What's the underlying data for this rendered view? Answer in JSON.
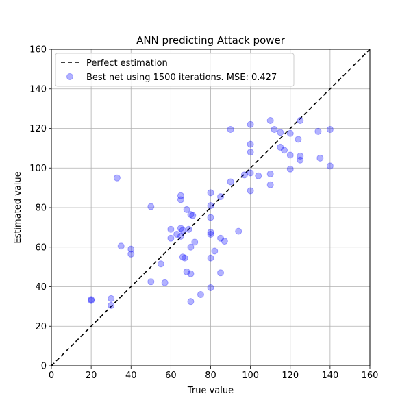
{
  "chart_data": {
    "type": "scatter",
    "title": "ANN predicting Attack power",
    "xlabel": "True value",
    "ylabel": "Estimated value",
    "xlim": [
      0,
      160
    ],
    "ylim": [
      0,
      160
    ],
    "xticks": [
      0,
      20,
      40,
      60,
      80,
      100,
      120,
      140,
      160
    ],
    "yticks": [
      0,
      20,
      40,
      60,
      80,
      100,
      120,
      140,
      160
    ],
    "grid": true,
    "legend_position": "top-left",
    "legend": [
      {
        "label": "Perfect estimation",
        "kind": "line"
      },
      {
        "label": "Best net using 1500 iterations. MSE: 0.427",
        "kind": "marker"
      }
    ],
    "reference_line": {
      "name": "Perfect estimation",
      "x": [
        0,
        160
      ],
      "y": [
        0,
        160
      ],
      "color": "#000000",
      "style": "dashed"
    },
    "series": [
      {
        "name": "Best net using 1500 iterations. MSE: 0.427",
        "color": "#0000ff",
        "points": [
          [
            20,
            33.5
          ],
          [
            20,
            33
          ],
          [
            30,
            34
          ],
          [
            30,
            30.5
          ],
          [
            33,
            95
          ],
          [
            35,
            60.5
          ],
          [
            40,
            59
          ],
          [
            40,
            56.5
          ],
          [
            50,
            80.5
          ],
          [
            50,
            42.5
          ],
          [
            55,
            51.5
          ],
          [
            57,
            42
          ],
          [
            60,
            69
          ],
          [
            60,
            64.5
          ],
          [
            63,
            66.5
          ],
          [
            65,
            86
          ],
          [
            65,
            84
          ],
          [
            65,
            69.5
          ],
          [
            66,
            68.5
          ],
          [
            65,
            65.5
          ],
          [
            66,
            55
          ],
          [
            67,
            54.5
          ],
          [
            68,
            79
          ],
          [
            69,
            69
          ],
          [
            68,
            47.5
          ],
          [
            70,
            76.5
          ],
          [
            71,
            76
          ],
          [
            70,
            60
          ],
          [
            70,
            46.5
          ],
          [
            72,
            62.5
          ],
          [
            70,
            32.5
          ],
          [
            75,
            36
          ],
          [
            80,
            87.5
          ],
          [
            80,
            81
          ],
          [
            80,
            75
          ],
          [
            80,
            67.5
          ],
          [
            80,
            66.5
          ],
          [
            80,
            54.5
          ],
          [
            80,
            39.5
          ],
          [
            82,
            58
          ],
          [
            85,
            85.5
          ],
          [
            85,
            64.5
          ],
          [
            85,
            47
          ],
          [
            87,
            63
          ],
          [
            90,
            119.5
          ],
          [
            90,
            93
          ],
          [
            94,
            68
          ],
          [
            97,
            96.5
          ],
          [
            100,
            122
          ],
          [
            100,
            112
          ],
          [
            100,
            108
          ],
          [
            100,
            97.5
          ],
          [
            100,
            88.5
          ],
          [
            104,
            96
          ],
          [
            110,
            124
          ],
          [
            112,
            119.5
          ],
          [
            115,
            118
          ],
          [
            110,
            97
          ],
          [
            110,
            91.5
          ],
          [
            115,
            110.5
          ],
          [
            117,
            109
          ],
          [
            120,
            117.5
          ],
          [
            120,
            106.5
          ],
          [
            120,
            99.5
          ],
          [
            124,
            114.5
          ],
          [
            125,
            124
          ],
          [
            125,
            106
          ],
          [
            125,
            104
          ],
          [
            134,
            118.5
          ],
          [
            135,
            105
          ],
          [
            140,
            119.5
          ],
          [
            140,
            101
          ]
        ]
      }
    ]
  }
}
